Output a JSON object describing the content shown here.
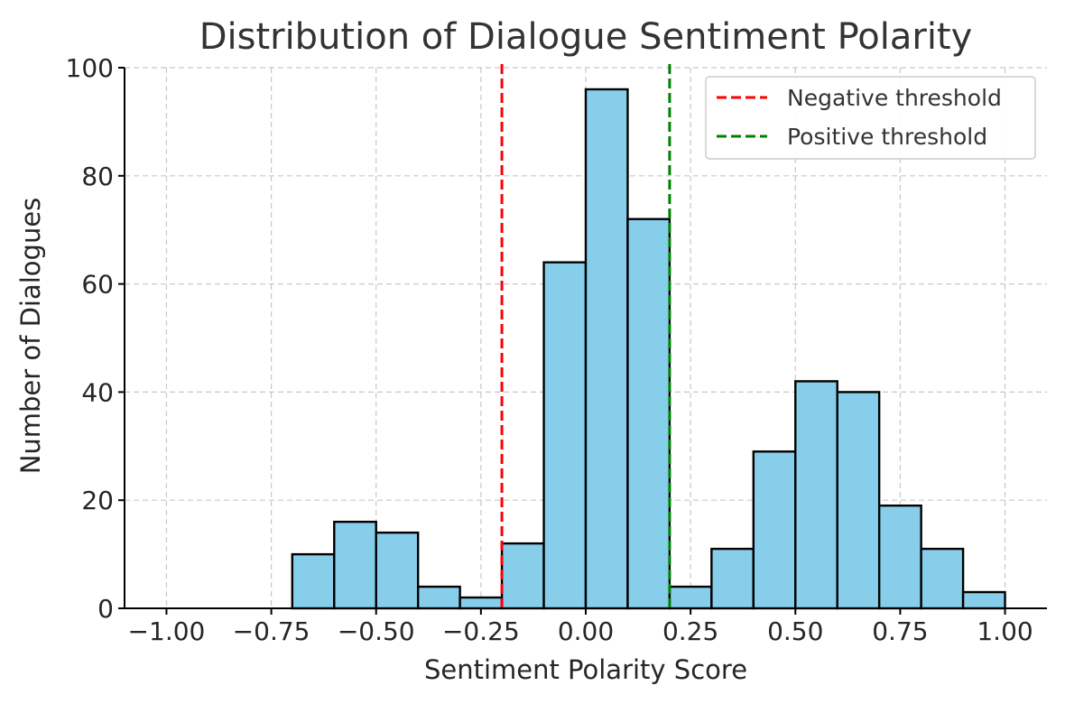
{
  "chart_data": {
    "type": "bar",
    "title": "Distribution of Dialogue Sentiment Polarity",
    "xlabel": "Sentiment Polarity Score",
    "ylabel": "Number of Dialogues",
    "xlim": [
      -1.1,
      1.1
    ],
    "ylim": [
      0,
      100
    ],
    "grid": true,
    "legend_position": "top-right",
    "x_ticks": [
      {
        "value": -1.0,
        "label": "−1.00"
      },
      {
        "value": -0.75,
        "label": "−0.75"
      },
      {
        "value": -0.5,
        "label": "−0.50"
      },
      {
        "value": -0.25,
        "label": "−0.25"
      },
      {
        "value": 0.0,
        "label": "0.00"
      },
      {
        "value": 0.25,
        "label": "0.25"
      },
      {
        "value": 0.5,
        "label": "0.50"
      },
      {
        "value": 0.75,
        "label": "0.75"
      },
      {
        "value": 1.0,
        "label": "1.00"
      }
    ],
    "y_ticks": [
      {
        "value": 0,
        "label": "0"
      },
      {
        "value": 20,
        "label": "20"
      },
      {
        "value": 40,
        "label": "40"
      },
      {
        "value": 60,
        "label": "60"
      },
      {
        "value": 80,
        "label": "80"
      },
      {
        "value": 100,
        "label": "100"
      }
    ],
    "bins": [
      {
        "start": -0.7,
        "end": -0.6,
        "count": 10
      },
      {
        "start": -0.6,
        "end": -0.5,
        "count": 16
      },
      {
        "start": -0.5,
        "end": -0.4,
        "count": 14
      },
      {
        "start": -0.4,
        "end": -0.3,
        "count": 4
      },
      {
        "start": -0.3,
        "end": -0.2,
        "count": 2
      },
      {
        "start": -0.2,
        "end": -0.1,
        "count": 12
      },
      {
        "start": -0.1,
        "end": 0.0,
        "count": 64
      },
      {
        "start": 0.0,
        "end": 0.1,
        "count": 96
      },
      {
        "start": 0.1,
        "end": 0.2,
        "count": 72
      },
      {
        "start": 0.2,
        "end": 0.3,
        "count": 4
      },
      {
        "start": 0.3,
        "end": 0.4,
        "count": 11
      },
      {
        "start": 0.4,
        "end": 0.5,
        "count": 29
      },
      {
        "start": 0.5,
        "end": 0.6,
        "count": 42
      },
      {
        "start": 0.6,
        "end": 0.7,
        "count": 40
      },
      {
        "start": 0.7,
        "end": 0.8,
        "count": 19
      },
      {
        "start": 0.8,
        "end": 0.9,
        "count": 11
      },
      {
        "start": 0.9,
        "end": 1.0,
        "count": 3
      }
    ],
    "bar_color": "#87ceeb",
    "bar_edge_color": "#000000",
    "thresholds": [
      {
        "name": "Negative threshold",
        "value": -0.2,
        "color": "#ff0000"
      },
      {
        "name": "Positive threshold",
        "value": 0.2,
        "color": "#008000"
      }
    ]
  }
}
